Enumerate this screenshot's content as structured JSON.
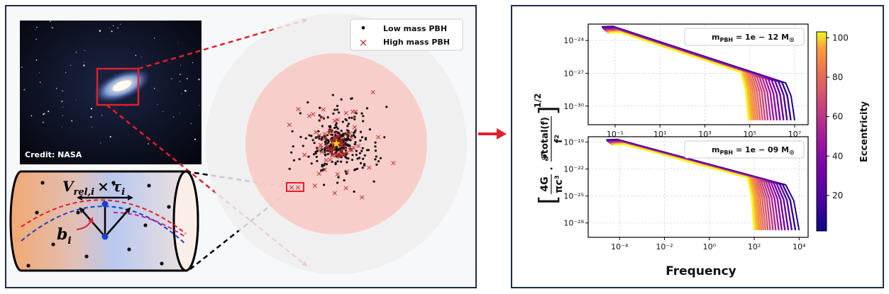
{
  "left_panel": {
    "photo_credit": "Credit: NASA",
    "cylinder": {
      "velocity_label_main": "V",
      "velocity_label_sub": "rel,i",
      "times_symbol": "×",
      "tau_main": "τ",
      "tau_sub": "i",
      "impact_label_main": "b",
      "impact_label_sub": "i"
    },
    "legend": {
      "low_marker": "•",
      "low_label": "Low mass PBH",
      "high_marker": "×",
      "high_label": "High mass PBH"
    }
  },
  "right_panel": {
    "ylabel_left_bracket": "[",
    "ylabel_num_term": "4G",
    "ylabel_den_term": "πc³",
    "ylabel_dot": "·",
    "ylabel_num_flux": "𝓕total(f)",
    "ylabel_den_flux": "f²",
    "ylabel_right_bracket": "]",
    "ylabel_power": "1/2",
    "xlabel": "Frequency",
    "colorbar": {
      "label": "Eccentricity",
      "ticks": [
        "100",
        "80",
        "60",
        "40",
        "20"
      ],
      "range": [
        2,
        103
      ]
    }
  },
  "colors": {
    "red": "#e0202a",
    "dark_red": "#b22a2a",
    "frame": "#1f2d45",
    "star": "#ffd700"
  },
  "chart_data": [
    {
      "type": "line",
      "title": "",
      "annotation": "m_PBH = 1e − 12 M⊙",
      "legend_text": "m",
      "legend_sub": "PBH",
      "legend_value": " = 1e − 12 M",
      "legend_sun": "⊙",
      "xscale": "log",
      "yscale": "log",
      "xlim_log10": [
        -2.2,
        7.6
      ],
      "ylim_log10": [
        -31.7,
        -22.5
      ],
      "xticks": [
        {
          "e": -1,
          "label": "10⁻¹"
        },
        {
          "e": 1,
          "label": "10¹"
        },
        {
          "e": 3,
          "label": "10³"
        },
        {
          "e": 5,
          "label": "10⁵"
        },
        {
          "e": 7,
          "label": "10⁷"
        }
      ],
      "yticks": [
        {
          "e": -24,
          "label": "10⁻²⁴"
        },
        {
          "e": -27,
          "label": "10⁻²⁷"
        },
        {
          "e": -30,
          "label": "10⁻³⁰"
        }
      ],
      "grid": true,
      "curves": {
        "count": 20,
        "x_start_log10": -1.7,
        "y_start_log10": -23.3,
        "x_start_high_ecc_log10": -1.7,
        "knee_log10_min": 4.6,
        "knee_log10_max": 6.6,
        "end_log10_min": 4.95,
        "end_log10_max": 7.0,
        "y_at_end_log10": -31.3,
        "slope": -0.667
      }
    },
    {
      "type": "line",
      "title": "",
      "annotation": "m_PBH = 1e − 09 M⊙",
      "legend_text": "m",
      "legend_sub": "PBH",
      "legend_value": " = 1e − 09 M",
      "legend_sun": "⊙",
      "xscale": "log",
      "yscale": "log",
      "xlim_log10": [
        -5.4,
        4.4
      ],
      "ylim_log10": [
        -29.6,
        -18.4
      ],
      "xticks": [
        {
          "e": -4,
          "label": "10⁻⁴"
        },
        {
          "e": -2,
          "label": "10⁻²"
        },
        {
          "e": 0,
          "label": "10⁰"
        },
        {
          "e": 2,
          "label": "10²"
        },
        {
          "e": 4,
          "label": "10⁴"
        }
      ],
      "yticks": [
        {
          "e": -19,
          "label": "10⁻¹⁹"
        },
        {
          "e": -22,
          "label": "10⁻²²"
        },
        {
          "e": -25,
          "label": "10⁻²⁵"
        },
        {
          "e": -28,
          "label": "10⁻²⁸"
        }
      ],
      "grid": true,
      "curves": {
        "count": 20,
        "x_start_log10": -4.7,
        "y_start_log10": -19.3,
        "x_start_high_ecc_log10": -4.7,
        "knee_log10_min": 1.7,
        "knee_log10_max": 3.4,
        "end_log10_min": 2.0,
        "end_log10_max": 4.0,
        "y_at_end_log10": -28.8,
        "slope": -0.667
      }
    }
  ]
}
